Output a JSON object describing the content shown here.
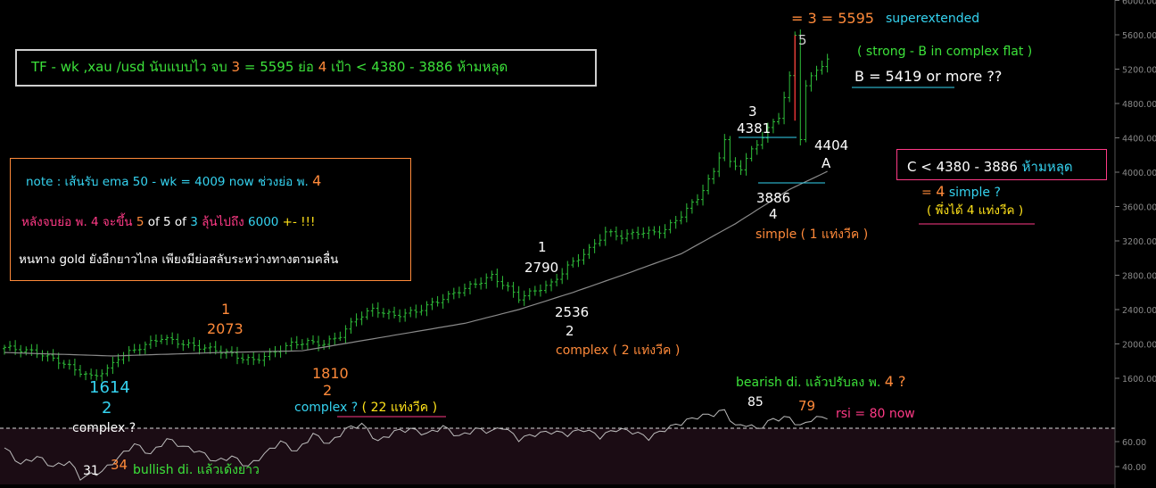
{
  "colors": {
    "background": "#000000",
    "price_bars": "#2fc03a",
    "ema_line": "#8a8a8a",
    "rsi_line": "#bdbdbd",
    "rsi_panel": "#1b0c14",
    "orange": "#ff8a3a",
    "cyan": "#35d3f0",
    "green": "#3ce23a",
    "pink": "#ff3a86",
    "yellow": "#ffe21a",
    "white": "#ffffff",
    "gray_label": "#d0d0d0"
  },
  "header_box": {
    "part1": "TF - wk ,xau /usd นับแบบไว จบ ",
    "part2": "3",
    "part3": " = 5595 ย่อ ",
    "part4": "4",
    "part5": " เป้า < 4380 - 3886 ห้ามหลุด"
  },
  "note_box": {
    "line1_a": "note : เส้นรับ ema 50 - wk = 4009 now ช่วงย่อ พ. ",
    "line1_b": "4",
    "line2_a": "หลังจบย่อ พ. 4 จะขึ้น ",
    "line2_b": "5",
    "line2_c": " of 5  of  ",
    "line2_d": "3",
    "line2_e": " ลุ้นไปถึง ",
    "line2_f": "6000",
    "line2_g": " +- !!!",
    "line3": "หนทาง gold ยังอีกยาวไกล เพียงมีย่อสลับระหว่างทางตามคลื่น"
  },
  "c_box": {
    "part1": "C < 4380 - 3886",
    "part2": "ห้ามหลุด"
  },
  "annotations": {
    "superextended_eq": "= 3 = 5595",
    "superextended": "superextended",
    "wave5": "5",
    "strong_b": "( strong - B in complex  flat )",
    "b_target": "B = 5419 or more ??",
    "w3_num": "3",
    "w3_price": "4381",
    "a_price": "4404",
    "a_label": "A",
    "w4_price": "3886",
    "w4_num": "4",
    "w4_simple": "simple ( 1 แท่งวีค )",
    "eq4_a": "= ",
    "eq4_b": "4",
    "eq4_c": "  simple ?",
    "just_4_weeks": "( พึ่งได้ 4 แท่งวีค )",
    "w1b_num": "1",
    "w1b_price": "2790",
    "w2b_price": "2536",
    "w2b_num": "2",
    "w2b_complex": "complex ( 2 แท่งวีค )",
    "w1a_num": "1",
    "w1a_price": "2073",
    "w2a_price": "1810",
    "w2a_num": "2",
    "w2a_complex": "complex ? ( 22 แท่งวีค )",
    "low_price": "1614",
    "low_num": "2",
    "low_complex": "complex ?",
    "rsi_85": "85",
    "rsi_79": "79",
    "rsi_now": "rsi = 80 now",
    "bearish": "bearish di. แล้วปรับลง พ. ",
    "bearish_4": "4 ?",
    "rsi_31": "31",
    "rsi_34": "34",
    "bullish": "bullish di. แล้วเด้งยาว"
  },
  "chart_data": [
    {
      "type": "candlestick",
      "title": "",
      "timeframe": "weekly",
      "x_label": "",
      "y_ticks": [
        1600,
        2000,
        2400,
        2800,
        3200,
        3600,
        4000,
        4400,
        4800,
        5200,
        5600,
        6000
      ],
      "ylim": [
        1300,
        6050
      ],
      "series": [
        {
          "name": "price",
          "points": [
            [
              0,
              1960
            ],
            [
              6,
              1900
            ],
            [
              10,
              1800
            ],
            [
              13,
              1700
            ],
            [
              16,
              1614
            ],
            [
              19,
              1700
            ],
            [
              21,
              1840
            ],
            [
              25,
              1960
            ],
            [
              29,
              2073
            ],
            [
              33,
              2000
            ],
            [
              38,
              1940
            ],
            [
              41,
              1900
            ],
            [
              44,
              1830
            ],
            [
              46,
              1810
            ],
            [
              49,
              1880
            ],
            [
              53,
              2000
            ],
            [
              56,
              2020
            ],
            [
              59,
              2000
            ],
            [
              62,
              2100
            ],
            [
              65,
              2300
            ],
            [
              68,
              2400
            ],
            [
              72,
              2330
            ],
            [
              76,
              2380
            ],
            [
              80,
              2500
            ],
            [
              84,
              2620
            ],
            [
              87,
              2700
            ],
            [
              90,
              2790
            ],
            [
              93,
              2650
            ],
            [
              95,
              2536
            ],
            [
              98,
              2620
            ],
            [
              101,
              2700
            ],
            [
              104,
              2900
            ],
            [
              108,
              3100
            ],
            [
              111,
              3300
            ],
            [
              114,
              3250
            ],
            [
              117,
              3300
            ],
            [
              120,
              3300
            ],
            [
              122,
              3330
            ],
            [
              125,
              3500
            ],
            [
              128,
              3700
            ],
            [
              131,
              4000
            ],
            [
              133,
              4381
            ],
            [
              134,
              4100
            ],
            [
              136,
              4050
            ],
            [
              138,
              4250
            ],
            [
              141,
              4500
            ],
            [
              143,
              4650
            ],
            [
              145,
              5100
            ],
            [
              146,
              5595
            ],
            [
              147,
              4404
            ],
            [
              148,
              5000
            ],
            [
              150,
              5200
            ],
            [
              152,
              5300
            ]
          ]
        },
        {
          "name": "ema 50",
          "points": [
            [
              0,
              1900
            ],
            [
              20,
              1860
            ],
            [
              40,
              1900
            ],
            [
              55,
              1920
            ],
            [
              70,
              2080
            ],
            [
              85,
              2240
            ],
            [
              95,
              2400
            ],
            [
              105,
              2600
            ],
            [
              115,
              2820
            ],
            [
              125,
              3050
            ],
            [
              135,
              3400
            ],
            [
              145,
              3800
            ],
            [
              152,
              4009
            ]
          ]
        }
      ]
    },
    {
      "type": "line",
      "title": "",
      "name": "rsi",
      "y_ticks": [
        40,
        60
      ],
      "ylim": [
        30,
        90
      ],
      "overbought_line": 70,
      "values": [
        [
          0,
          55
        ],
        [
          3,
          42
        ],
        [
          6,
          48
        ],
        [
          9,
          40
        ],
        [
          12,
          44
        ],
        [
          14,
          31
        ],
        [
          18,
          36
        ],
        [
          21,
          47
        ],
        [
          24,
          58
        ],
        [
          27,
          50
        ],
        [
          30,
          62
        ],
        [
          33,
          56
        ],
        [
          36,
          52
        ],
        [
          39,
          44
        ],
        [
          42,
          48
        ],
        [
          45,
          40
        ],
        [
          48,
          50
        ],
        [
          51,
          60
        ],
        [
          54,
          52
        ],
        [
          57,
          66
        ],
        [
          60,
          58
        ],
        [
          63,
          70
        ],
        [
          66,
          74
        ],
        [
          69,
          60
        ],
        [
          72,
          68
        ],
        [
          75,
          70
        ],
        [
          78,
          66
        ],
        [
          81,
          72
        ],
        [
          84,
          64
        ],
        [
          87,
          70
        ],
        [
          90,
          68
        ],
        [
          92,
          72
        ],
        [
          95,
          62
        ],
        [
          98,
          66
        ],
        [
          101,
          68
        ],
        [
          104,
          66
        ],
        [
          107,
          70
        ],
        [
          110,
          64
        ],
        [
          113,
          70
        ],
        [
          116,
          68
        ],
        [
          119,
          63
        ],
        [
          122,
          70
        ],
        [
          125,
          75
        ],
        [
          128,
          80
        ],
        [
          131,
          82
        ],
        [
          133,
          85
        ],
        [
          135,
          72
        ],
        [
          137,
          74
        ],
        [
          139,
          70
        ],
        [
          142,
          78
        ],
        [
          145,
          79
        ],
        [
          147,
          72
        ],
        [
          149,
          78
        ],
        [
          152,
          80
        ]
      ]
    }
  ]
}
